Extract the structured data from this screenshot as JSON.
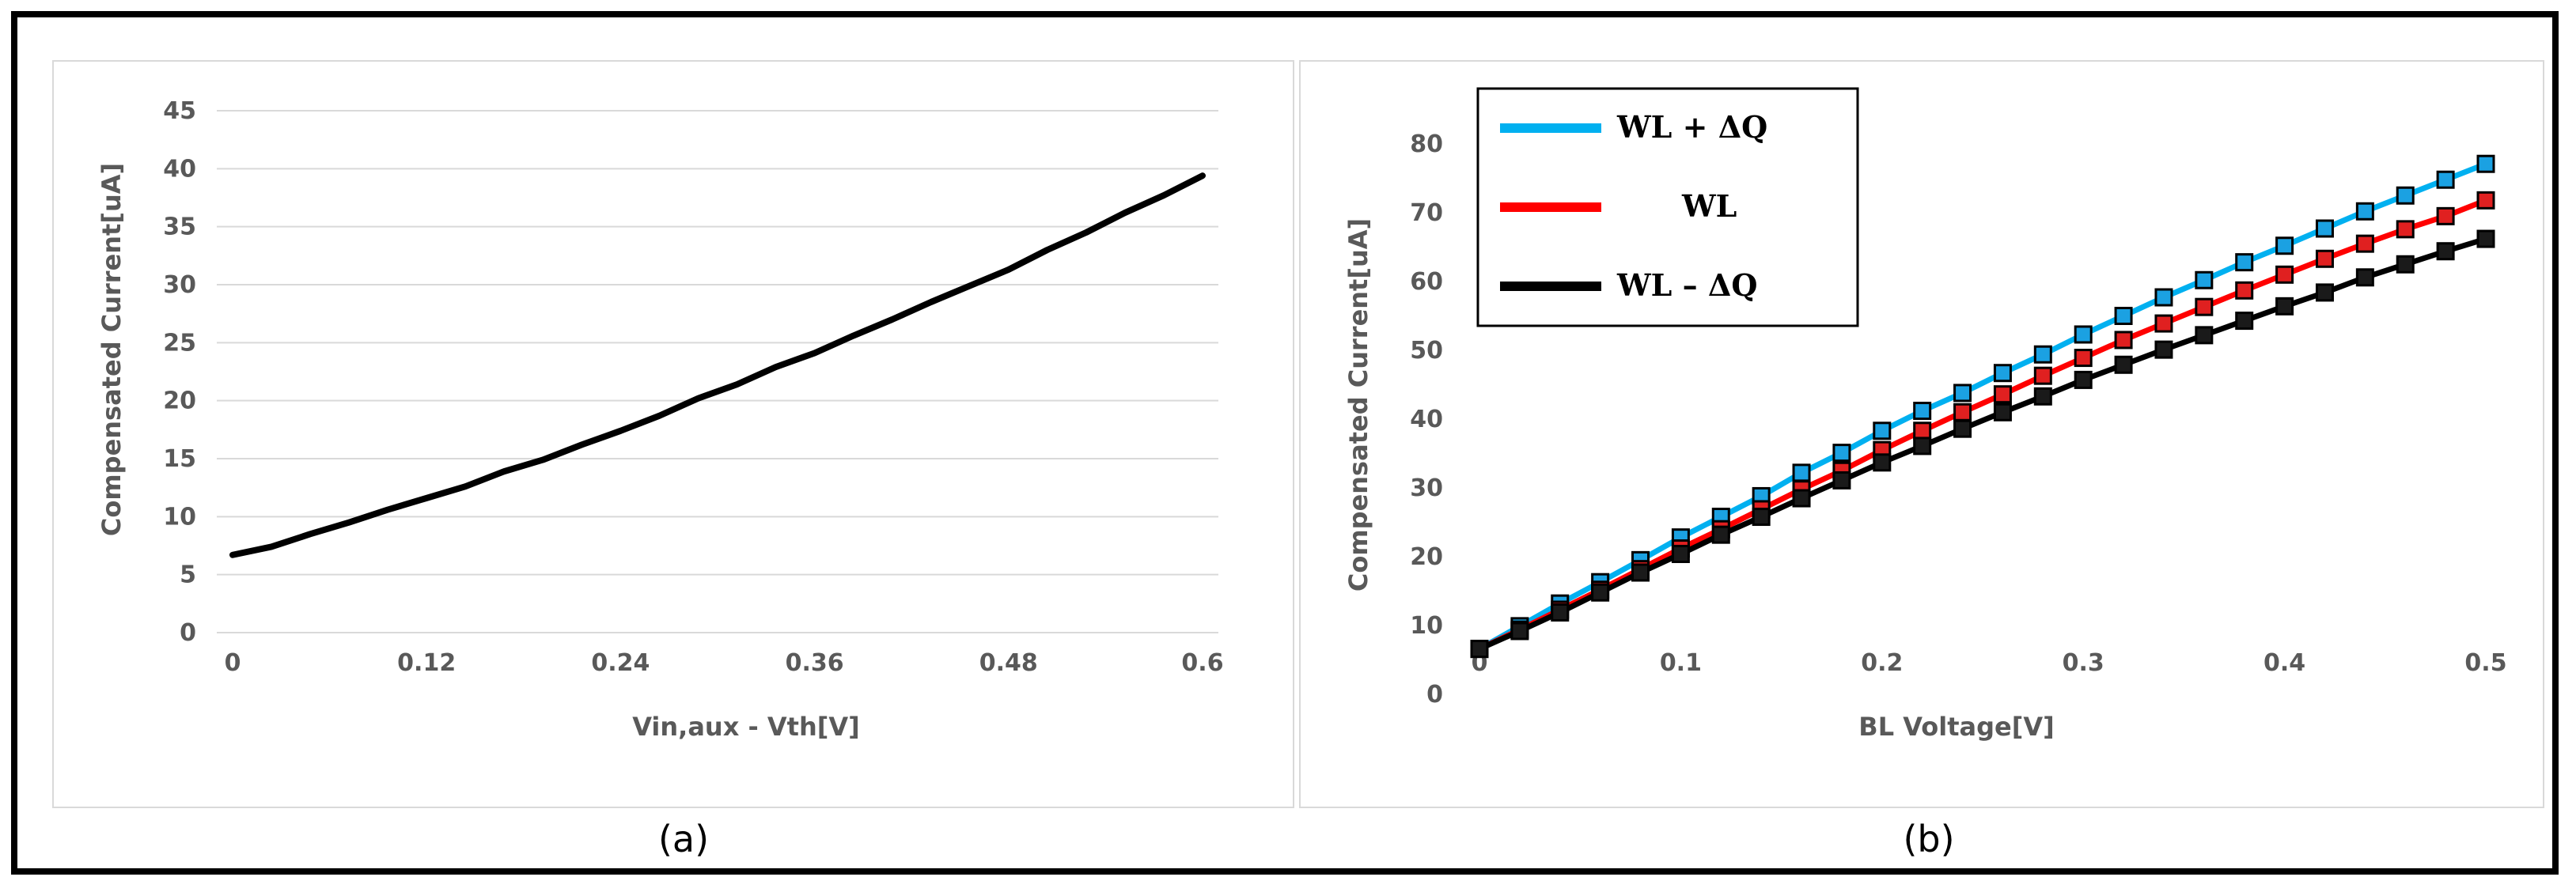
{
  "chart_data": [
    {
      "type": "line",
      "xlabel": "Vin,aux  - Vth[V]",
      "ylabel": "Compensated Current[uA]",
      "xlim": [
        0,
        0.6
      ],
      "ylim": [
        0,
        45
      ],
      "xticks": [
        "0",
        "0.12",
        "0.24",
        "0.36",
        "0.48",
        "0.6"
      ],
      "yticks": [
        "0",
        "5",
        "10",
        "15",
        "20",
        "25",
        "30",
        "35",
        "40",
        "45"
      ],
      "grid": "horizontal",
      "series": [
        {
          "color": "#000000",
          "x": [
            0,
            0.024,
            0.048,
            0.072,
            0.096,
            0.12,
            0.144,
            0.168,
            0.192,
            0.216,
            0.24,
            0.264,
            0.288,
            0.312,
            0.336,
            0.36,
            0.384,
            0.408,
            0.432,
            0.456,
            0.48,
            0.504,
            0.528,
            0.552,
            0.576,
            0.6
          ],
          "y": [
            6.7,
            7.4,
            8.5,
            9.5,
            10.6,
            11.6,
            12.6,
            13.9,
            14.9,
            16.2,
            17.4,
            18.7,
            20.2,
            21.4,
            22.9,
            24.1,
            25.6,
            27.0,
            28.5,
            29.9,
            31.3,
            33.0,
            34.5,
            36.2,
            37.7,
            39.4
          ]
        }
      ],
      "caption": "(a)"
    },
    {
      "type": "line",
      "xlabel": "BL Voltage[V]",
      "ylabel": "Compensated Current[uA]",
      "xlim": [
        0,
        0.5
      ],
      "ylim": [
        0,
        80
      ],
      "xticks": [
        "0",
        "0.1",
        "0.2",
        "0.3",
        "0.4",
        "0.5"
      ],
      "yticks": [
        "0",
        "10",
        "20",
        "30",
        "40",
        "50",
        "60",
        "70",
        "80"
      ],
      "grid": "none",
      "legend_position": "top-left",
      "x": [
        0,
        0.02,
        0.04,
        0.06,
        0.08,
        0.1,
        0.12,
        0.14,
        0.16,
        0.18,
        0.2,
        0.22,
        0.24,
        0.26,
        0.28,
        0.3,
        0.32,
        0.34,
        0.36,
        0.38,
        0.4,
        0.42,
        0.44,
        0.46,
        0.48,
        0.5
      ],
      "series": [
        {
          "name": "WL + ΔQ",
          "color": "#00b0f0",
          "marker_fill": "#1ba1e2",
          "y": [
            6.6,
            9.9,
            13.2,
            16.3,
            19.5,
            22.8,
            25.8,
            28.8,
            32.2,
            35.1,
            38.3,
            41.2,
            43.8,
            46.7,
            49.4,
            52.3,
            55.0,
            57.7,
            60.2,
            62.8,
            65.2,
            67.7,
            70.2,
            72.5,
            74.8,
            77.1
          ]
        },
        {
          "name": "WL",
          "color": "#ff0000",
          "marker_fill": "#e02020",
          "y": [
            6.6,
            9.4,
            12.3,
            15.2,
            18.2,
            21.2,
            24.0,
            26.9,
            29.8,
            32.5,
            35.5,
            38.3,
            41.0,
            43.6,
            46.3,
            48.9,
            51.5,
            53.9,
            56.3,
            58.7,
            61.0,
            63.3,
            65.5,
            67.6,
            69.5,
            71.8
          ]
        },
        {
          "name": "WL – ΔQ",
          "color": "#000000",
          "marker_fill": "#1a1a1a",
          "y": [
            6.6,
            9.2,
            11.9,
            14.8,
            17.7,
            20.4,
            23.2,
            25.8,
            28.5,
            31.1,
            33.7,
            36.1,
            38.6,
            41.0,
            43.3,
            45.7,
            47.9,
            50.1,
            52.2,
            54.3,
            56.4,
            58.4,
            60.6,
            62.5,
            64.4,
            66.2
          ]
        }
      ],
      "caption": "(b)"
    }
  ]
}
